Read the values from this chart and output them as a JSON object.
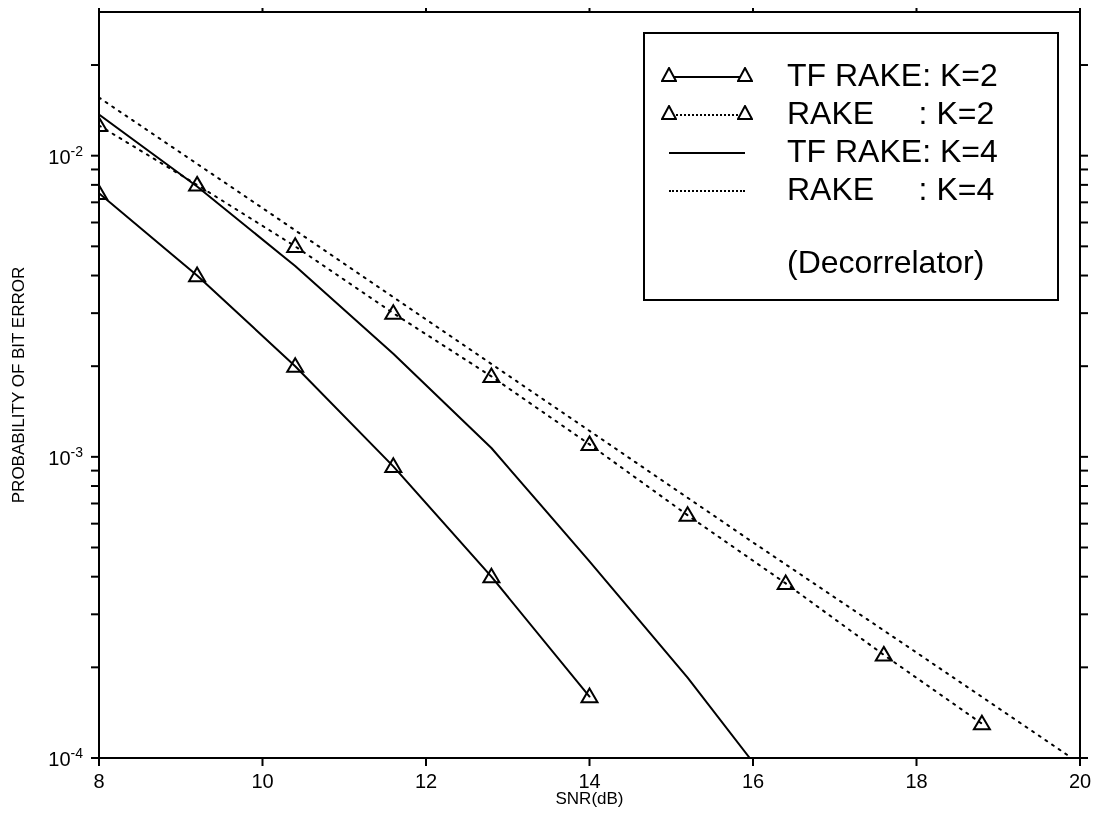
{
  "chart_data": {
    "type": "line",
    "xlabel": "SNR(dB)",
    "ylabel": "PROBABILITY OF BIT ERROR",
    "log": "y",
    "grid": false,
    "legend": "top right",
    "xlim": [
      8,
      20
    ],
    "xticks": [
      8,
      10,
      12,
      14,
      16,
      18,
      20
    ],
    "ylim": [
      0.0001,
      0.03
    ],
    "yticks": [
      {
        "value": 0.0001,
        "label": "10$^{-4}$"
      },
      {
        "value": 0.0002,
        "label": null
      },
      {
        "value": 0.0003,
        "label": null
      },
      {
        "value": 0.0004,
        "label": null
      },
      {
        "value": 0.0005,
        "label": null
      },
      {
        "value": 0.0006,
        "label": null
      },
      {
        "value": 0.0007,
        "label": null
      },
      {
        "value": 0.0008,
        "label": null
      },
      {
        "value": 0.0009,
        "label": null
      },
      {
        "value": 0.001,
        "label": "10$^{-3}$"
      },
      {
        "value": 0.002,
        "label": null
      },
      {
        "value": 0.003,
        "label": null
      },
      {
        "value": 0.004,
        "label": null
      },
      {
        "value": 0.005,
        "label": null
      },
      {
        "value": 0.006,
        "label": null
      },
      {
        "value": 0.007,
        "label": null
      },
      {
        "value": 0.008,
        "label": null
      },
      {
        "value": 0.009,
        "label": null
      },
      {
        "value": 0.01,
        "label": "10$^{-2}$"
      },
      {
        "value": 0.02,
        "label": null
      }
    ],
    "annotations": [
      "(Decorrelator)"
    ],
    "series": [
      {
        "name": "TF RAKE: K=2",
        "color": "#000000",
        "marker": "triangle",
        "line_style": "solid",
        "x": [
          8,
          9.2,
          10.4,
          11.6,
          12.8,
          14
        ],
        "values": [
          0.0075,
          0.004,
          0.002,
          0.00093,
          0.0004,
          0.00016
        ]
      },
      {
        "name": "RAKE     : K=2",
        "color": "#000000",
        "marker": "triangle",
        "line_style": "dotted",
        "x": [
          8,
          9.2,
          10.4,
          11.6,
          12.8,
          14,
          15.2,
          16.4,
          17.6,
          18.8
        ],
        "values": [
          0.0126,
          0.008,
          0.005,
          0.003,
          0.00185,
          0.0011,
          0.00064,
          0.00038,
          0.00022,
          0.00013
        ]
      },
      {
        "name": "TF RAKE: K=4",
        "color": "#000000",
        "marker": "none",
        "line_style": "solid",
        "x": [
          8,
          9.2,
          10.4,
          11.6,
          12.8,
          14,
          15.2,
          15.96
        ],
        "values": [
          0.0137,
          0.0079,
          0.0043,
          0.0022,
          0.00107,
          0.00045,
          0.000185,
          0.0001
        ]
      },
      {
        "name": "RAKE     : K=4",
        "color": "#000000",
        "marker": "none",
        "line_style": "dotted",
        "x": [
          8,
          10,
          12,
          14,
          16,
          18,
          19.9
        ],
        "values": [
          0.0156,
          0.0067,
          0.00286,
          0.00122,
          0.00052,
          0.000224,
          0.0001
        ]
      }
    ]
  }
}
